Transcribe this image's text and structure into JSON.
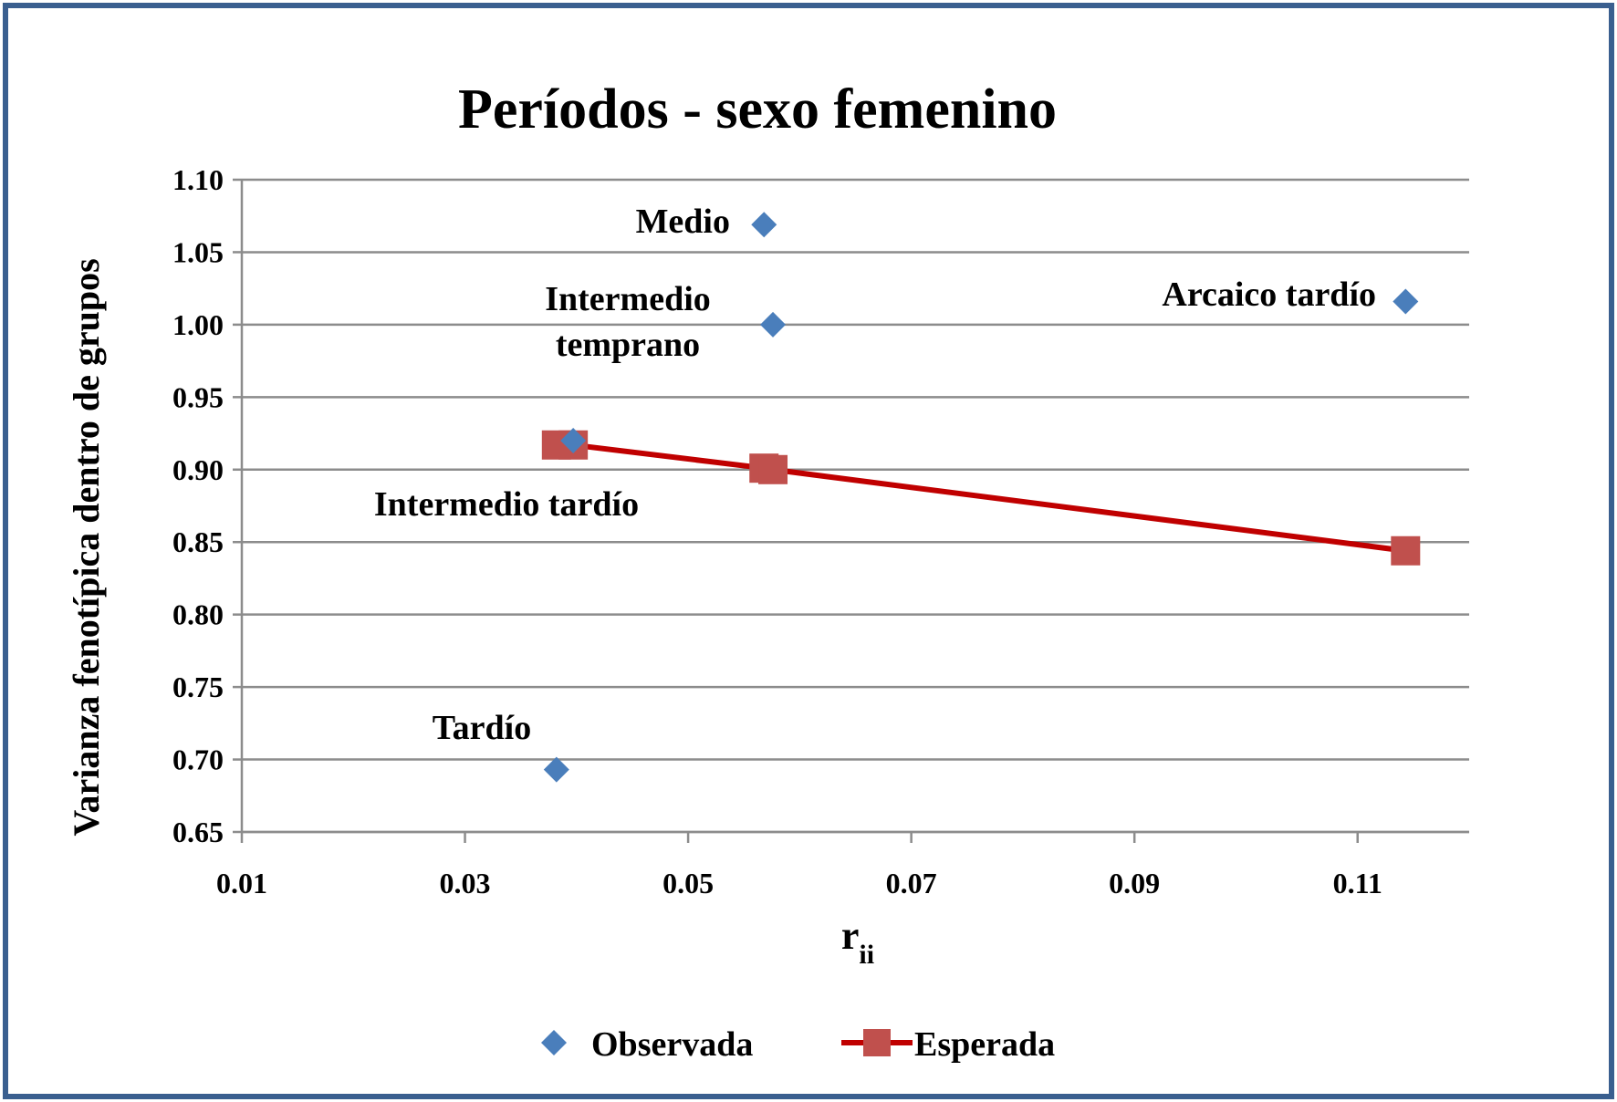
{
  "chart_data": {
    "type": "scatter",
    "title": "Períodos - sexo femenino",
    "xlabel": "r",
    "xlabel_subscript": "ii",
    "ylabel": "Varianza fenotípica dentro de grupos",
    "xlim": [
      0.01,
      0.12
    ],
    "ylim": [
      0.65,
      1.1
    ],
    "x_ticks": [
      0.01,
      0.03,
      0.05,
      0.07,
      0.09,
      0.11
    ],
    "x_tick_labels": [
      "0.01",
      "0.03",
      "0.05",
      "0.07",
      "0.09",
      "0.11"
    ],
    "y_ticks": [
      0.65,
      0.7,
      0.75,
      0.8,
      0.85,
      0.9,
      0.95,
      1.0,
      1.05,
      1.1
    ],
    "y_tick_labels": [
      "0.65",
      "0.70",
      "0.75",
      "0.80",
      "0.85",
      "0.90",
      "0.95",
      "1.00",
      "1.05",
      "1.10"
    ],
    "grid": "horizontal",
    "legend_position": "bottom",
    "series": [
      {
        "name": "Observada",
        "marker": "diamond",
        "line": false,
        "color": "#4a7ebb",
        "points": [
          {
            "x": 0.0568,
            "y": 1.069
          },
          {
            "x": 0.0576,
            "y": 1.0
          },
          {
            "x": 0.1143,
            "y": 1.016
          },
          {
            "x": 0.0397,
            "y": 0.92
          },
          {
            "x": 0.0382,
            "y": 0.693
          }
        ]
      },
      {
        "name": "Esperada",
        "marker": "square",
        "line": true,
        "color": "#c0504d",
        "line_color": "#c00000",
        "points": [
          {
            "x": 0.0382,
            "y": 0.917
          },
          {
            "x": 0.0397,
            "y": 0.917
          },
          {
            "x": 0.0568,
            "y": 0.901
          },
          {
            "x": 0.0576,
            "y": 0.9
          },
          {
            "x": 0.1143,
            "y": 0.844
          }
        ]
      }
    ],
    "annotations": [
      {
        "id": "medio",
        "lines": [
          "Medio"
        ]
      },
      {
        "id": "intermedio-temprano",
        "lines": [
          "Intermedio",
          "temprano"
        ]
      },
      {
        "id": "arcaico-tardio",
        "lines": [
          "Arcaico tardío"
        ]
      },
      {
        "id": "intermedio-tardio",
        "lines": [
          "Intermedio tardío"
        ]
      },
      {
        "id": "tardio",
        "lines": [
          "Tardío"
        ]
      }
    ],
    "border_color": "#3a5f8f"
  }
}
